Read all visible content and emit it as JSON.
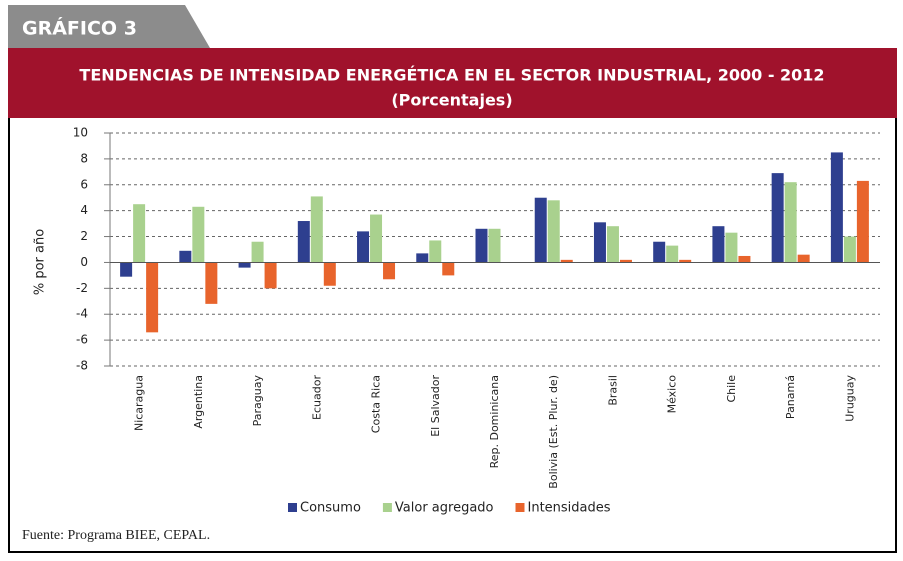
{
  "header": {
    "tab": "GRÁFICO 3",
    "title": "TENDENCIAS DE INTENSIDAD ENERGÉTICA EN EL SECTOR INDUSTRIAL, 2000 - 2012",
    "subtitle": "(Porcentajes)"
  },
  "source": "Fuente: Programa BIEE, CEPAL.",
  "chart_data": {
    "type": "bar",
    "ylabel": "% por año",
    "categories": [
      "Nicaragua",
      "Argentina",
      "Paraguay",
      "Ecuador",
      "Costa Rica",
      "El Salvador",
      "Rep. Dominicana",
      "Bolivia (Est. Plur. de)",
      "Brasil",
      "México",
      "Chile",
      "Panamá",
      "Uruguay"
    ],
    "series": [
      {
        "name": "Consumo",
        "color": "#2e3f8f",
        "values": [
          -1.1,
          0.9,
          -0.4,
          3.2,
          2.4,
          0.7,
          2.6,
          5.0,
          3.1,
          1.6,
          2.8,
          6.9,
          8.5
        ]
      },
      {
        "name": "Valor agregado",
        "color": "#a9d18e",
        "values": [
          4.5,
          4.3,
          1.6,
          5.1,
          3.7,
          1.7,
          2.6,
          4.8,
          2.8,
          1.3,
          2.3,
          6.2,
          2.0
        ]
      },
      {
        "name": "Intensidades",
        "color": "#e8642c",
        "values": [
          -5.4,
          -3.2,
          -2.0,
          -1.8,
          -1.3,
          -1.0,
          0,
          0.2,
          0.2,
          0.2,
          0.5,
          0.6,
          6.3
        ]
      }
    ],
    "ylim": [
      -8,
      10
    ],
    "yticks": [
      -8,
      -6,
      -4,
      -2,
      0,
      2,
      4,
      6,
      8,
      10
    ],
    "grid": true,
    "legend": "bottom"
  }
}
